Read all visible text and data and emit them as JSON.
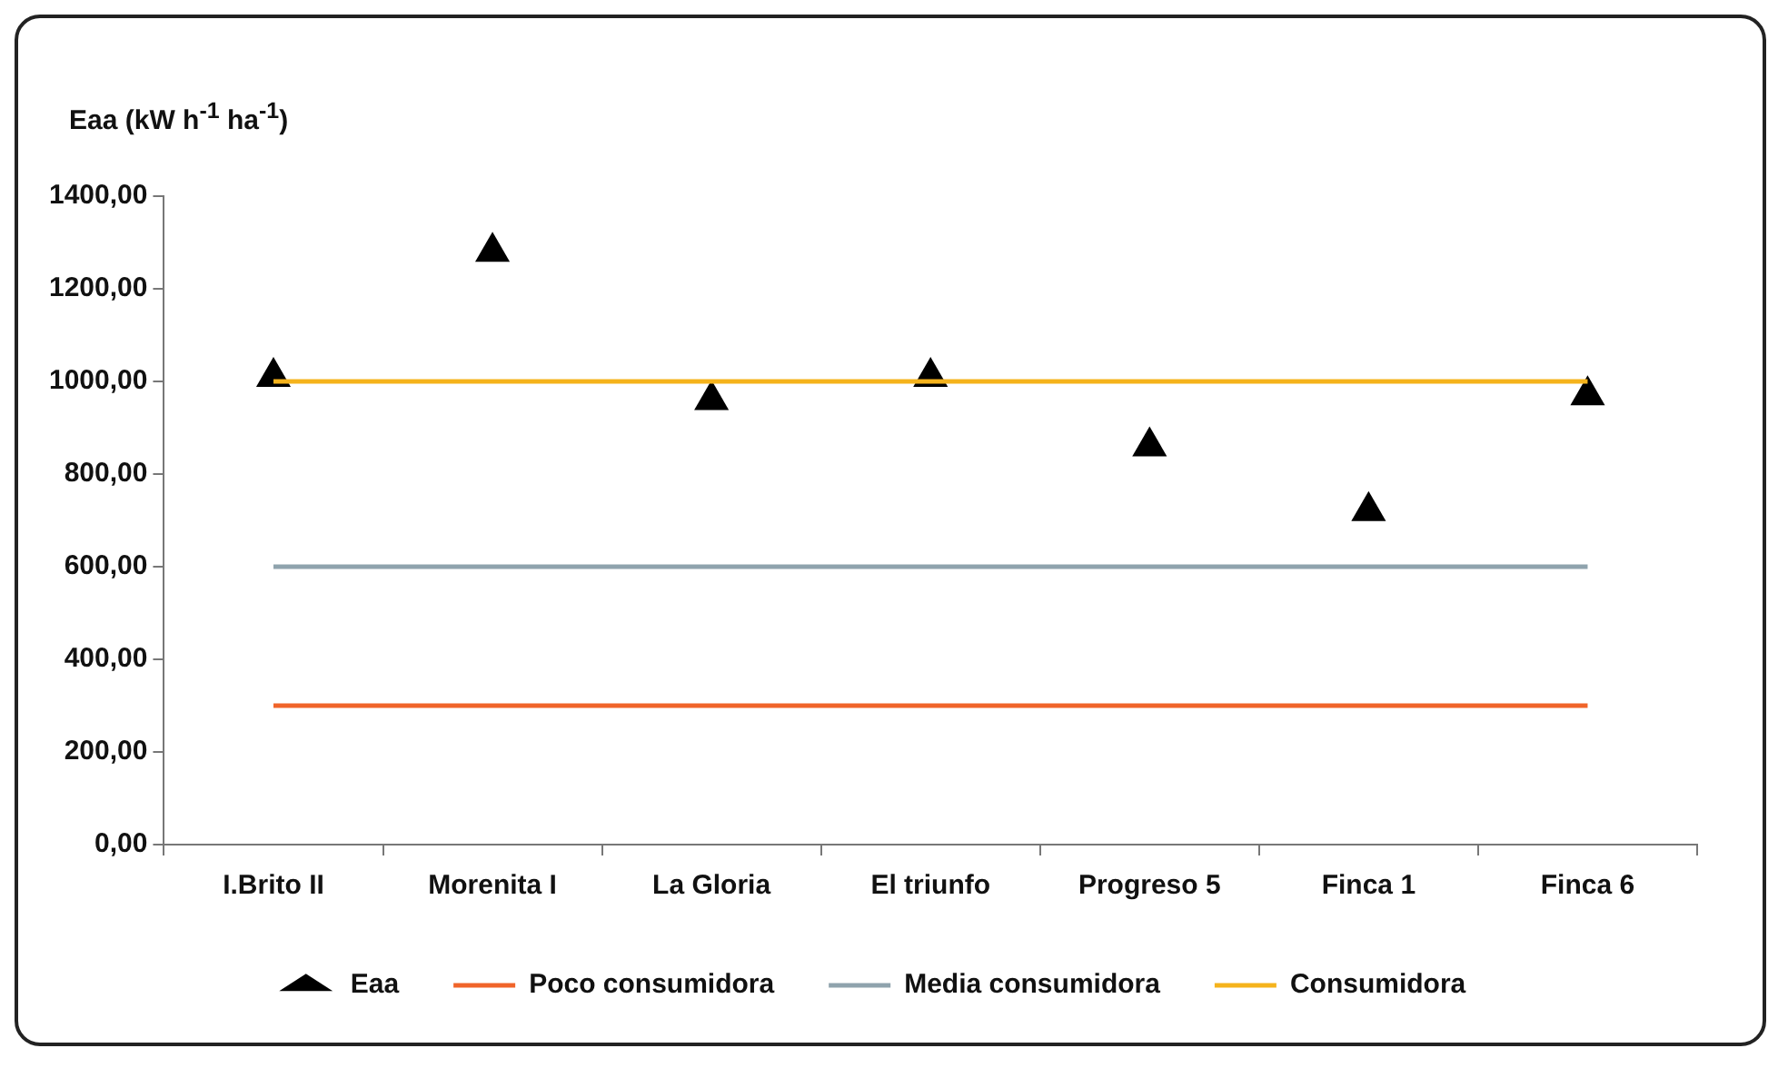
{
  "chart_data": {
    "type": "line",
    "ylabel": "Eaa (kW h$^{-1}$ ha$^{-1}$)",
    "categories": [
      "I.Brito II",
      "Morenita I",
      "La Gloria",
      "El triunfo",
      "Progreso 5",
      "Finca 1",
      "Finca 6"
    ],
    "series": [
      {
        "name": "Eaa",
        "type": "scatter",
        "marker": "triangle",
        "color": "#000000",
        "values": [
          1010,
          1280,
          960,
          1010,
          860,
          720,
          970
        ]
      },
      {
        "name": "Poco consumidora",
        "marker": "none",
        "color": "#f0642a",
        "values": [
          300,
          300,
          300,
          300,
          300,
          300,
          300
        ]
      },
      {
        "name": "Media consumidora",
        "marker": "none",
        "color": "#8fa3ad",
        "values": [
          600,
          600,
          600,
          600,
          600,
          600,
          600
        ]
      },
      {
        "name": "Consumidora",
        "marker": "none",
        "color": "#f5b31c",
        "values": [
          1000,
          1000,
          1000,
          1000,
          1000,
          1000,
          1000
        ]
      }
    ],
    "ylim": [
      0,
      1400
    ],
    "yticks": [
      {
        "value": 0,
        "label": "0,00"
      },
      {
        "value": 200,
        "label": "200,00"
      },
      {
        "value": 400,
        "label": "400,00"
      },
      {
        "value": 600,
        "label": "600,00"
      },
      {
        "value": 800,
        "label": "800,00"
      },
      {
        "value": 1000,
        "label": "1000,00"
      },
      {
        "value": 1200,
        "label": "1200,00"
      },
      {
        "value": 1400,
        "label": "1400,00"
      }
    ],
    "grid": false,
    "legend": "bottom"
  }
}
